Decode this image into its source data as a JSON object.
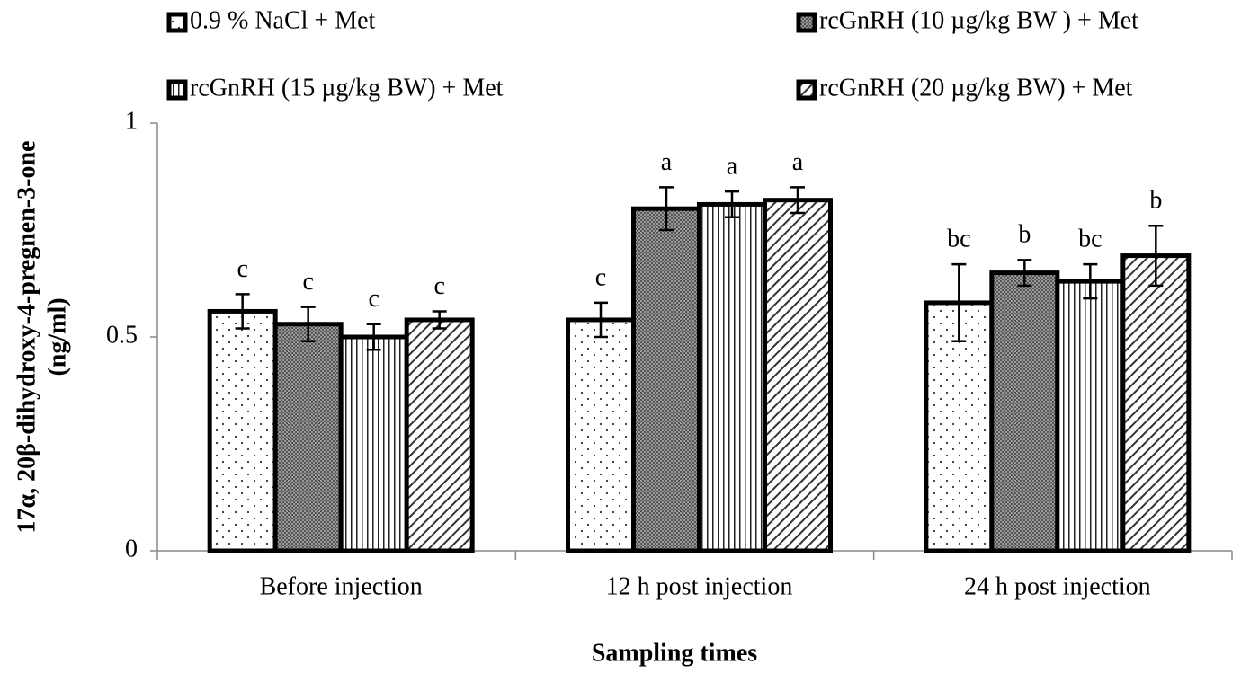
{
  "chart_data": {
    "type": "bar",
    "y_label": [
      "17α, 20β-dihydroxy-4-pregnen-3-one",
      "(ng/ml)"
    ],
    "x_label": "Sampling times",
    "categories": [
      "Before injection",
      "12 h post  injection",
      "24 h post  injection"
    ],
    "ylim": [
      0,
      1
    ],
    "yticks": [
      0,
      0.5,
      1
    ],
    "series": [
      {
        "name": "0.9 % NaCl + Met",
        "pattern": "dots",
        "values": [
          0.56,
          0.54,
          0.58
        ],
        "errors": [
          0.04,
          0.04,
          0.09
        ],
        "letters": [
          "c",
          "c",
          "bc"
        ]
      },
      {
        "name": "rcGnRH (10 µg/kg BW ) + Met",
        "pattern": "crosshatch",
        "values": [
          0.53,
          0.8,
          0.65
        ],
        "errors": [
          0.04,
          0.05,
          0.03
        ],
        "letters": [
          "c",
          "a",
          "b"
        ]
      },
      {
        "name": "rcGnRH (15 µg/kg BW) + Met",
        "pattern": "vertical",
        "values": [
          0.5,
          0.81,
          0.63
        ],
        "errors": [
          0.03,
          0.03,
          0.04
        ],
        "letters": [
          "c",
          "a",
          "bc"
        ]
      },
      {
        "name": "rcGnRH (20 µg/kg BW) + Met",
        "pattern": "diagonal",
        "values": [
          0.54,
          0.82,
          0.69
        ],
        "errors": [
          0.02,
          0.03,
          0.07
        ],
        "letters": [
          "c",
          "a",
          "b"
        ]
      }
    ]
  }
}
